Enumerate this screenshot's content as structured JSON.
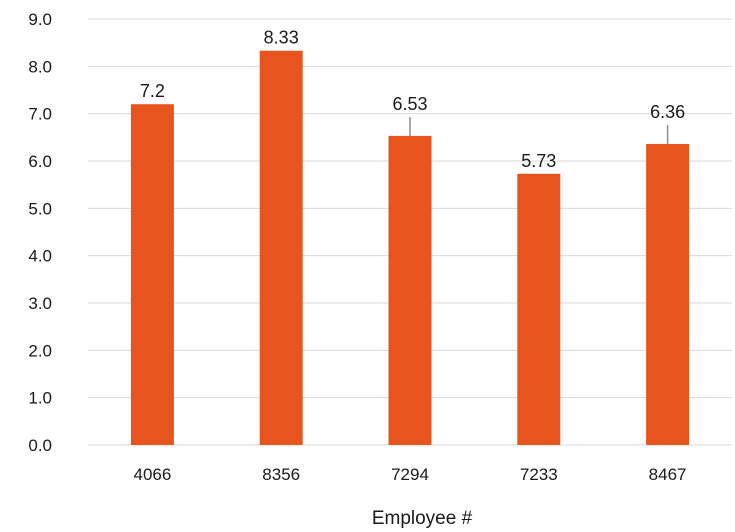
{
  "chart_data": {
    "type": "bar",
    "categories": [
      "4066",
      "8356",
      "7294",
      "7233",
      "8467"
    ],
    "values": [
      7.2,
      8.33,
      6.53,
      5.73,
      6.36
    ],
    "data_labels": [
      "7.2",
      "8.33",
      "6.53",
      "5.73",
      "6.36"
    ],
    "error_upper": [
      0,
      0,
      0.4,
      0,
      0.4
    ],
    "title": "",
    "xlabel": "Employee #",
    "ylabel": "",
    "ylim": [
      0,
      9
    ],
    "yticks": [
      "0.0",
      "1.0",
      "2.0",
      "3.0",
      "4.0",
      "5.0",
      "6.0",
      "7.0",
      "8.0",
      "9.0"
    ],
    "grid": true,
    "legend": "none",
    "bar_color": "#e8541e",
    "error_bar_color": "#8c8c8c"
  }
}
